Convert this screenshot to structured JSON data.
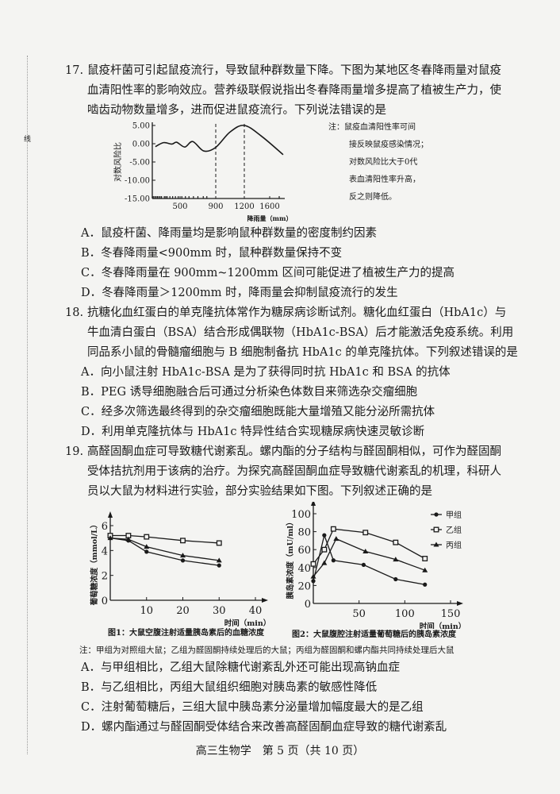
{
  "margin_mark": "线",
  "q17": {
    "number": "17.",
    "stem": [
      "鼠疫杆菌可引起鼠疫流行，导致鼠种群数量下降。下图为某地区冬春降雨量对鼠疫",
      "血清阳性率的影响效应。营养级联假说指出冬春降雨量增多提高了植被生产力，使",
      "啮齿动物数量增多，进而促进鼠疫流行。下列说法错误的是"
    ],
    "note": [
      "注：鼠疫血清阳性率可间",
      "接反映鼠疫感染情况；",
      "对数风险比大于0代",
      "表血清阳性率升高，",
      "反之则降低。"
    ],
    "options": [
      "A．鼠疫杆菌、降雨量均是影响鼠种群数量的密度制约因素",
      "B．冬春降雨量<900mm 时，鼠种群数量保持不变",
      "C．冬春降雨量在 900mm~1200mm 区间可能促进了植被生产力的提高",
      "D．冬春降雨量＞1200mm 时，降雨量会抑制鼠疫流行的发生"
    ]
  },
  "q18": {
    "number": "18.",
    "stem": [
      "抗糖化血红蛋白的单克隆抗体常作为糖尿病诊断试剂。糖化血红蛋白（HbA1c）与",
      "牛血清白蛋白（BSA）结合形成偶联物（HbA1c-BSA）后才能激活免疫系统。利用",
      "同品系小鼠的骨髓瘤细胞与 B 细胞制备抗 HbA1c 的单克隆抗体。下列叙述错误的是"
    ],
    "options": [
      "A．向小鼠注射 HbA1c-BSA 是为了获得同时抗 HbA1c 和 BSA 的抗体",
      "B．PEG 诱导细胞融合后可通过分析染色体数目来筛选杂交瘤细胞",
      "C．经多次筛选最终得到的杂交瘤细胞既能大量增殖又能分泌所需抗体",
      "D．利用单克隆抗体与 HbA1c 特异性结合实现糖尿病快速灵敏诊断"
    ]
  },
  "q19": {
    "number": "19.",
    "stem": [
      "高醛固酮血症可导致糖代谢紊乱。螺内酯的分子结构与醛固酮相似，可作为醛固酮",
      "受体拮抗剂用于该病的治疗。为探究高醛固酮血症导致糖代谢紊乱的机理，科研人",
      "员以大鼠为材料进行实验，部分实验结果如下图。下列叙述正确的是"
    ],
    "fig1_caption": "图1：大鼠空腹注射适量胰岛素后的血糖浓度",
    "fig2_caption": "图2：大鼠腹腔注射适量葡萄糖后的胰岛素浓度",
    "note": "注：甲组为对照组大鼠；乙组为醛固酮持续处理后的大鼠；丙组为醛固酮和螺内酯共同持续处理后大鼠",
    "options": [
      "A．与甲组相比，乙组大鼠除糖代谢紊乱外还可能出现高钠血症",
      "B．与乙组相比，丙组大鼠组织细胞对胰岛素的敏感性降低",
      "C．注射葡萄糖后，三组大鼠中胰岛素分泌量增加幅度最大的是乙组",
      "D．螺内酯通过与醛固酮受体结合来改善高醛固酮血症导致的糖代谢紊乱"
    ]
  },
  "footer": "高三生物学　第 5 页（共 10 页）",
  "chart_data": [
    {
      "type": "line",
      "xlabel": "降雨量（mm）",
      "ylabel": "对数风险比",
      "x_ticks": [
        500,
        900,
        1200,
        1600
      ],
      "y_ticks": [
        "5.00",
        "0.00",
        "-5.00",
        "-10.00",
        "-15.00"
      ],
      "ylim": [
        -15,
        5
      ],
      "reference_lines": [
        900,
        1200
      ],
      "series": [
        {
          "x": [
            233,
            322,
            411,
            464,
            553,
            642,
            767,
            900,
            1050,
            1200,
            1475,
            1812
          ],
          "y": [
            -0.8,
            0.3,
            -0.1,
            0.4,
            -0.9,
            0.6,
            -2.0,
            -1.0,
            3.2,
            5.0,
            2.0,
            -3.0
          ]
        }
      ]
    },
    {
      "type": "line",
      "xlabel": "时间（min）",
      "ylabel": "葡萄糖浓度（mmol/L）",
      "x_ticks": [
        10,
        20,
        30,
        40
      ],
      "y_ticks": [
        0,
        2,
        4,
        6
      ],
      "xlim": [
        0,
        40
      ],
      "ylim": [
        0,
        6
      ],
      "x": [
        0,
        5,
        10,
        20,
        30
      ],
      "series": [
        {
          "name": "甲组",
          "marker": "circle",
          "values": [
            5.0,
            4.8,
            3.9,
            3.2,
            2.8
          ]
        },
        {
          "name": "乙组",
          "marker": "square",
          "values": [
            5.2,
            5.2,
            5.1,
            4.8,
            4.6
          ]
        },
        {
          "name": "丙组",
          "marker": "triangle",
          "values": [
            5.0,
            4.9,
            4.3,
            3.6,
            3.2
          ]
        }
      ]
    },
    {
      "type": "line",
      "xlabel": "时间（min）",
      "ylabel": "胰岛素浓度（mU/ml）",
      "x_ticks": [
        50,
        100,
        150
      ],
      "y_ticks": [
        0,
        20,
        40,
        60,
        80,
        100
      ],
      "xlim": [
        0,
        150
      ],
      "ylim": [
        0,
        100
      ],
      "legend": "top-right",
      "series": [
        {
          "name": "甲组",
          "marker": "circle",
          "x": [
            0,
            12,
            22,
            55,
            90,
            122
          ],
          "values": [
            25,
            76,
            48,
            43,
            27,
            21
          ]
        },
        {
          "name": "乙组",
          "marker": "square",
          "x": [
            0,
            12,
            22,
            57,
            90,
            122
          ],
          "values": [
            44,
            60,
            83,
            79,
            68,
            50
          ]
        },
        {
          "name": "丙组",
          "marker": "triangle",
          "x": [
            0,
            12,
            25,
            57,
            90,
            122
          ],
          "values": [
            30,
            45,
            72,
            58,
            49,
            37
          ]
        }
      ]
    }
  ]
}
